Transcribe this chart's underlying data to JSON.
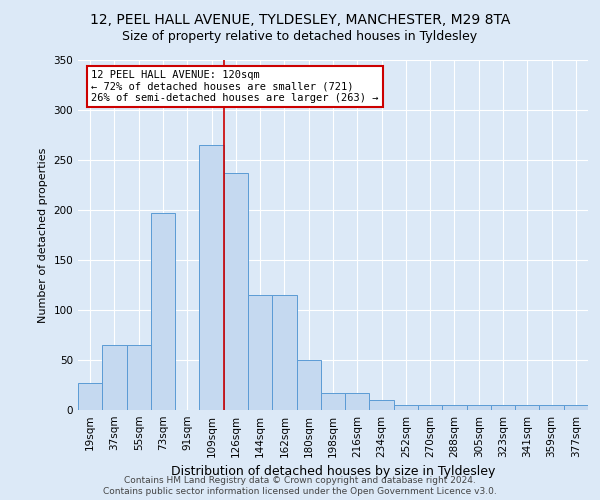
{
  "title1": "12, PEEL HALL AVENUE, TYLDESLEY, MANCHESTER, M29 8TA",
  "title2": "Size of property relative to detached houses in Tyldesley",
  "xlabel": "Distribution of detached houses by size in Tyldesley",
  "ylabel": "Number of detached properties",
  "categories": [
    "19sqm",
    "37sqm",
    "55sqm",
    "73sqm",
    "91sqm",
    "109sqm",
    "126sqm",
    "144sqm",
    "162sqm",
    "180sqm",
    "198sqm",
    "216sqm",
    "234sqm",
    "252sqm",
    "270sqm",
    "288sqm",
    "305sqm",
    "323sqm",
    "341sqm",
    "359sqm",
    "377sqm"
  ],
  "values": [
    27,
    65,
    65,
    197,
    0,
    265,
    237,
    115,
    115,
    50,
    17,
    17,
    10,
    5,
    5,
    5,
    5,
    5,
    5,
    5,
    5
  ],
  "bar_color": "#c5d9f0",
  "bar_edge_color": "#5b9bd5",
  "vline_x_index": 5.5,
  "annotation_text_line1": "12 PEEL HALL AVENUE: 120sqm",
  "annotation_text_line2": "← 72% of detached houses are smaller (721)",
  "annotation_text_line3": "26% of semi-detached houses are larger (263) →",
  "annotation_box_color": "#ffffff",
  "annotation_box_edge_color": "#cc0000",
  "vline_color": "#cc0000",
  "ylim": [
    0,
    350
  ],
  "yticks": [
    0,
    50,
    100,
    150,
    200,
    250,
    300,
    350
  ],
  "bg_color": "#dce9f7",
  "title1_fontsize": 10,
  "title2_fontsize": 9,
  "xlabel_fontsize": 9,
  "ylabel_fontsize": 8,
  "tick_fontsize": 7.5,
  "footer1": "Contains HM Land Registry data © Crown copyright and database right 2024.",
  "footer2": "Contains public sector information licensed under the Open Government Licence v3.0.",
  "footer_fontsize": 6.5
}
